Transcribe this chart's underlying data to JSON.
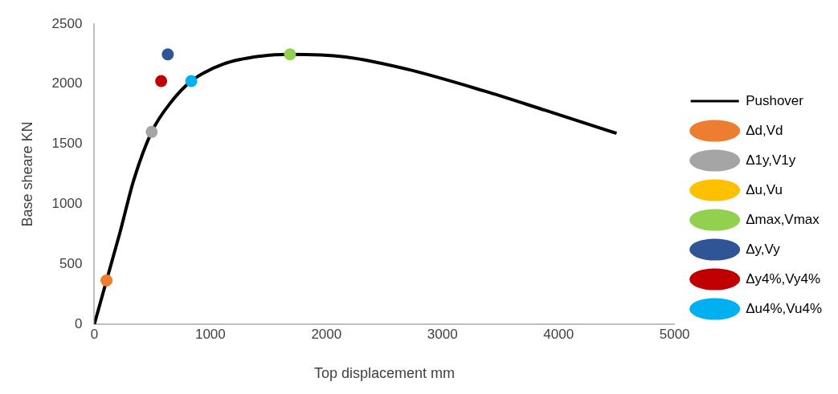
{
  "chart_data": {
    "type": "scatter",
    "xlabel": "Top displacement mm",
    "ylabel": "Base sheare KN",
    "xlim": [
      0,
      5000
    ],
    "xticks": [
      0,
      1000,
      2000,
      3000,
      4000,
      5000
    ],
    "ylim": [
      0,
      2500
    ],
    "yticks": [
      0,
      500,
      1000,
      1500,
      2000,
      2500
    ],
    "grid": false,
    "legend": "right",
    "marker": "circle",
    "series": [
      {
        "name": "Pushover",
        "type": "line",
        "marker": "none",
        "color": "#000000",
        "x": [
          0,
          105,
          219,
          340,
          494,
          665,
          835,
          1110,
          1434,
          1686,
          2164,
          2674,
          3355,
          3890,
          4500
        ],
        "values": [
          0,
          364,
          757,
          1202,
          1602,
          1855,
          2025,
          2166,
          2233,
          2248,
          2226,
          2129,
          1944,
          1780,
          1590
        ]
      },
      {
        "name": "Δd,Vd",
        "color": "#ed7d31",
        "x": [
          105
        ],
        "values": [
          364
        ]
      },
      {
        "name": "Δ1y,V1y",
        "color": "#a5a5a5",
        "x": [
          494
        ],
        "values": [
          1602
        ]
      },
      {
        "name": "Δu,Vu",
        "color": "#ffc000",
        "x": [
          null
        ],
        "values": [
          null
        ]
      },
      {
        "name": "Δmax,Vmax",
        "color": "#92d050",
        "x": [
          1686
        ],
        "values": [
          2248
        ]
      },
      {
        "name": "Δy,Vy",
        "color": "#2f5597",
        "x": [
          633
        ],
        "values": [
          2248
        ]
      },
      {
        "name": "Δy4%,Vy4%",
        "color": "#c00000",
        "x": [
          576
        ],
        "values": [
          2025
        ]
      },
      {
        "name": "Δu4%,Vu4%",
        "color": "#00b0f0",
        "x": [
          835
        ],
        "values": [
          2025
        ]
      }
    ]
  }
}
